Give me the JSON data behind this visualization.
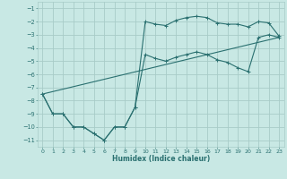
{
  "xlabel": "Humidex (Indice chaleur)",
  "bg_color": "#c8e8e4",
  "grid_color": "#a8ccc8",
  "line_color": "#2a7070",
  "xlim": [
    -0.5,
    23.5
  ],
  "ylim": [
    -11.5,
    -0.5
  ],
  "xticks": [
    0,
    1,
    2,
    3,
    4,
    5,
    6,
    7,
    8,
    9,
    10,
    11,
    12,
    13,
    14,
    15,
    16,
    17,
    18,
    19,
    20,
    21,
    22,
    23
  ],
  "yticks": [
    -11,
    -10,
    -9,
    -8,
    -7,
    -6,
    -5,
    -4,
    -3,
    -2,
    -1
  ],
  "curve1_x": [
    0,
    1,
    2,
    3,
    4,
    5,
    6,
    7,
    8,
    9,
    10,
    11,
    12,
    13,
    14,
    15,
    16,
    17,
    18,
    19,
    20,
    21,
    22,
    23
  ],
  "curve1_y": [
    -7.5,
    -9.0,
    -9.0,
    -10.0,
    -10.0,
    -10.5,
    -11.0,
    -10.0,
    -10.0,
    -8.5,
    -2.0,
    -2.2,
    -2.3,
    -1.9,
    -1.7,
    -1.6,
    -1.7,
    -2.1,
    -2.2,
    -2.2,
    -2.4,
    -2.0,
    -2.1,
    -3.1
  ],
  "curve2_x": [
    0,
    1,
    2,
    3,
    4,
    5,
    6,
    7,
    8,
    9,
    10,
    11,
    12,
    13,
    14,
    15,
    16,
    17,
    18,
    19,
    20,
    21,
    22,
    23
  ],
  "curve2_y": [
    -7.5,
    -9.0,
    -9.0,
    -10.0,
    -10.0,
    -10.5,
    -11.0,
    -10.0,
    -10.0,
    -8.5,
    -4.5,
    -4.8,
    -5.0,
    -4.7,
    -4.5,
    -4.3,
    -4.5,
    -4.9,
    -5.1,
    -5.5,
    -5.8,
    -3.2,
    -3.0,
    -3.2
  ],
  "curve3_x": [
    0,
    23
  ],
  "curve3_y": [
    -7.5,
    -3.2
  ],
  "xlabel_fontsize": 5.5,
  "tick_fontsize": 4.5,
  "lw": 0.8,
  "ms": 2.5,
  "mew": 0.7
}
